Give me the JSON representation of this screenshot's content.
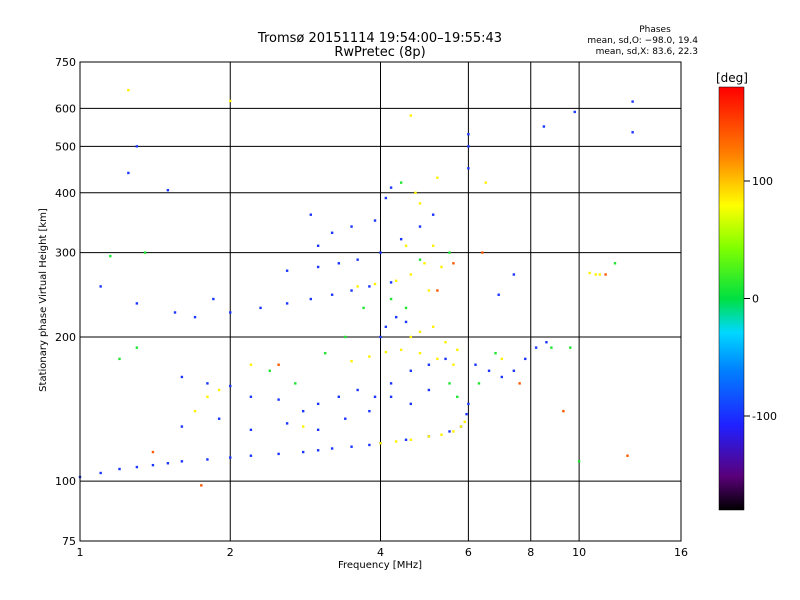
{
  "chart_data": {
    "type": "scatter",
    "title": "Tromsø 20151114 19:54:00–19:55:43",
    "subtitle": "RwPretec (8p)",
    "xlabel": "Frequency [MHz]",
    "ylabel": "Stationary phase Virtual Height [km]",
    "x_scale": "log",
    "y_scale": "log",
    "xlim": [
      1,
      16
    ],
    "ylim": [
      75,
      750
    ],
    "x_ticks": [
      1,
      2,
      4,
      6,
      8,
      10,
      16
    ],
    "y_ticks": [
      75,
      100,
      200,
      300,
      400,
      500,
      600,
      750
    ],
    "grid": true,
    "phase_info": {
      "heading": "Phases",
      "line_o": "mean, sd,O: −98.0, 19.4",
      "line_x": "mean, sd,X:  83.6, 22.3"
    },
    "colorbar": {
      "label": "[deg]",
      "range": [
        -180,
        180
      ],
      "ticks": [
        100,
        0,
        -100
      ]
    },
    "series": [
      {
        "mode": "O",
        "color_value": -98,
        "points": [
          [
            1.0,
            102
          ],
          [
            1.1,
            104
          ],
          [
            1.2,
            106
          ],
          [
            1.3,
            107
          ],
          [
            1.4,
            108
          ],
          [
            1.5,
            109
          ],
          [
            1.6,
            110
          ],
          [
            1.8,
            111
          ],
          [
            2.0,
            112
          ],
          [
            2.2,
            113
          ],
          [
            2.5,
            114
          ],
          [
            2.8,
            115
          ],
          [
            3.0,
            116
          ],
          [
            3.2,
            117
          ],
          [
            3.5,
            118
          ],
          [
            3.8,
            119
          ],
          [
            4.0,
            120
          ],
          [
            4.5,
            122
          ],
          [
            5.0,
            124
          ],
          [
            5.5,
            127
          ],
          [
            5.8,
            130
          ],
          [
            5.95,
            138
          ],
          [
            6.0,
            145
          ],
          [
            1.6,
            165
          ],
          [
            1.8,
            160
          ],
          [
            2.0,
            158
          ],
          [
            2.2,
            150
          ],
          [
            2.5,
            148
          ],
          [
            2.8,
            140
          ],
          [
            3.0,
            145
          ],
          [
            3.3,
            150
          ],
          [
            3.6,
            155
          ],
          [
            3.9,
            150
          ],
          [
            4.2,
            160
          ],
          [
            4.6,
            170
          ],
          [
            5.0,
            175
          ],
          [
            5.4,
            180
          ],
          [
            1.6,
            130
          ],
          [
            1.9,
            135
          ],
          [
            2.2,
            128
          ],
          [
            2.6,
            132
          ],
          [
            3.0,
            128
          ],
          [
            3.4,
            135
          ],
          [
            3.8,
            140
          ],
          [
            4.2,
            150
          ],
          [
            4.6,
            145
          ],
          [
            5.0,
            155
          ],
          [
            1.7,
            220
          ],
          [
            2.0,
            225
          ],
          [
            2.3,
            230
          ],
          [
            2.6,
            235
          ],
          [
            2.9,
            240
          ],
          [
            3.2,
            245
          ],
          [
            3.5,
            250
          ],
          [
            3.8,
            255
          ],
          [
            4.2,
            260
          ],
          [
            2.6,
            275
          ],
          [
            3.0,
            280
          ],
          [
            3.3,
            285
          ],
          [
            3.6,
            290
          ],
          [
            4.0,
            300
          ],
          [
            4.4,
            320
          ],
          [
            4.8,
            340
          ],
          [
            5.1,
            360
          ],
          [
            3.2,
            330
          ],
          [
            3.5,
            340
          ],
          [
            3.9,
            350
          ],
          [
            4.1,
            390
          ],
          [
            4.2,
            410
          ],
          [
            4.0,
            200
          ],
          [
            4.1,
            210
          ],
          [
            4.3,
            220
          ],
          [
            4.5,
            215
          ],
          [
            6.2,
            175
          ],
          [
            6.6,
            170
          ],
          [
            7.0,
            165
          ],
          [
            7.4,
            170
          ],
          [
            7.8,
            180
          ],
          [
            8.2,
            190
          ],
          [
            8.6,
            195
          ],
          [
            6.0,
            450
          ],
          [
            6.0,
            500
          ],
          [
            6.0,
            530
          ],
          [
            8.5,
            550
          ],
          [
            9.8,
            590
          ],
          [
            12.8,
            620
          ],
          [
            12.8,
            535
          ],
          [
            1.3,
            500
          ],
          [
            1.5,
            405
          ],
          [
            1.25,
            440
          ],
          [
            1.85,
            240
          ],
          [
            1.55,
            225
          ],
          [
            2.9,
            360
          ],
          [
            3.0,
            310
          ],
          [
            7.4,
            270
          ],
          [
            6.9,
            245
          ],
          [
            1.1,
            255
          ],
          [
            1.3,
            235
          ]
        ]
      },
      {
        "mode": "X",
        "color_value": 84,
        "points": [
          [
            4.0,
            120
          ],
          [
            4.3,
            121
          ],
          [
            4.6,
            122
          ],
          [
            5.0,
            124
          ],
          [
            5.3,
            125
          ],
          [
            5.6,
            127
          ],
          [
            5.8,
            130
          ],
          [
            5.9,
            133
          ],
          [
            3.5,
            178
          ],
          [
            3.8,
            182
          ],
          [
            4.1,
            186
          ],
          [
            4.4,
            188
          ],
          [
            4.8,
            185
          ],
          [
            5.2,
            180
          ],
          [
            5.6,
            175
          ],
          [
            3.6,
            255
          ],
          [
            3.9,
            258
          ],
          [
            4.3,
            262
          ],
          [
            4.6,
            270
          ],
          [
            4.9,
            285
          ],
          [
            5.1,
            310
          ],
          [
            5.0,
            250
          ],
          [
            4.6,
            200
          ],
          [
            4.8,
            205
          ],
          [
            5.1,
            210
          ],
          [
            5.4,
            195
          ],
          [
            5.7,
            188
          ],
          [
            1.7,
            140
          ],
          [
            1.8,
            150
          ],
          [
            1.9,
            155
          ],
          [
            2.2,
            175
          ],
          [
            2.8,
            130
          ],
          [
            4.8,
            380
          ],
          [
            4.7,
            400
          ],
          [
            5.2,
            430
          ],
          [
            5.3,
            280
          ],
          [
            4.5,
            310
          ],
          [
            1.25,
            655
          ],
          [
            2.0,
            622
          ],
          [
            10.5,
            272
          ],
          [
            10.8,
            270
          ],
          [
            11.0,
            270
          ],
          [
            4.6,
            580
          ],
          [
            7.0,
            180
          ],
          [
            6.5,
            420
          ]
        ]
      },
      {
        "mode": "mixed",
        "color_value": 10,
        "points": [
          [
            1.15,
            295
          ],
          [
            1.35,
            300
          ],
          [
            1.2,
            180
          ],
          [
            1.3,
            190
          ],
          [
            2.4,
            170
          ],
          [
            2.7,
            160
          ],
          [
            3.1,
            185
          ],
          [
            3.4,
            200
          ],
          [
            3.7,
            230
          ],
          [
            4.2,
            240
          ],
          [
            4.5,
            230
          ],
          [
            5.5,
            160
          ],
          [
            5.7,
            150
          ],
          [
            6.3,
            160
          ],
          [
            6.8,
            185
          ],
          [
            8.8,
            190
          ],
          [
            9.6,
            190
          ],
          [
            11.8,
            285
          ],
          [
            10.0,
            110
          ],
          [
            4.8,
            290
          ],
          [
            5.5,
            300
          ],
          [
            4.4,
            420
          ]
        ]
      },
      {
        "mode": "scatter-high",
        "color_value": 140,
        "points": [
          [
            1.4,
            115
          ],
          [
            1.75,
            98
          ],
          [
            5.2,
            250
          ],
          [
            5.6,
            285
          ],
          [
            6.4,
            300
          ],
          [
            11.3,
            270
          ],
          [
            12.5,
            113
          ],
          [
            9.3,
            140
          ],
          [
            7.6,
            160
          ],
          [
            2.5,
            175
          ]
        ]
      }
    ]
  }
}
